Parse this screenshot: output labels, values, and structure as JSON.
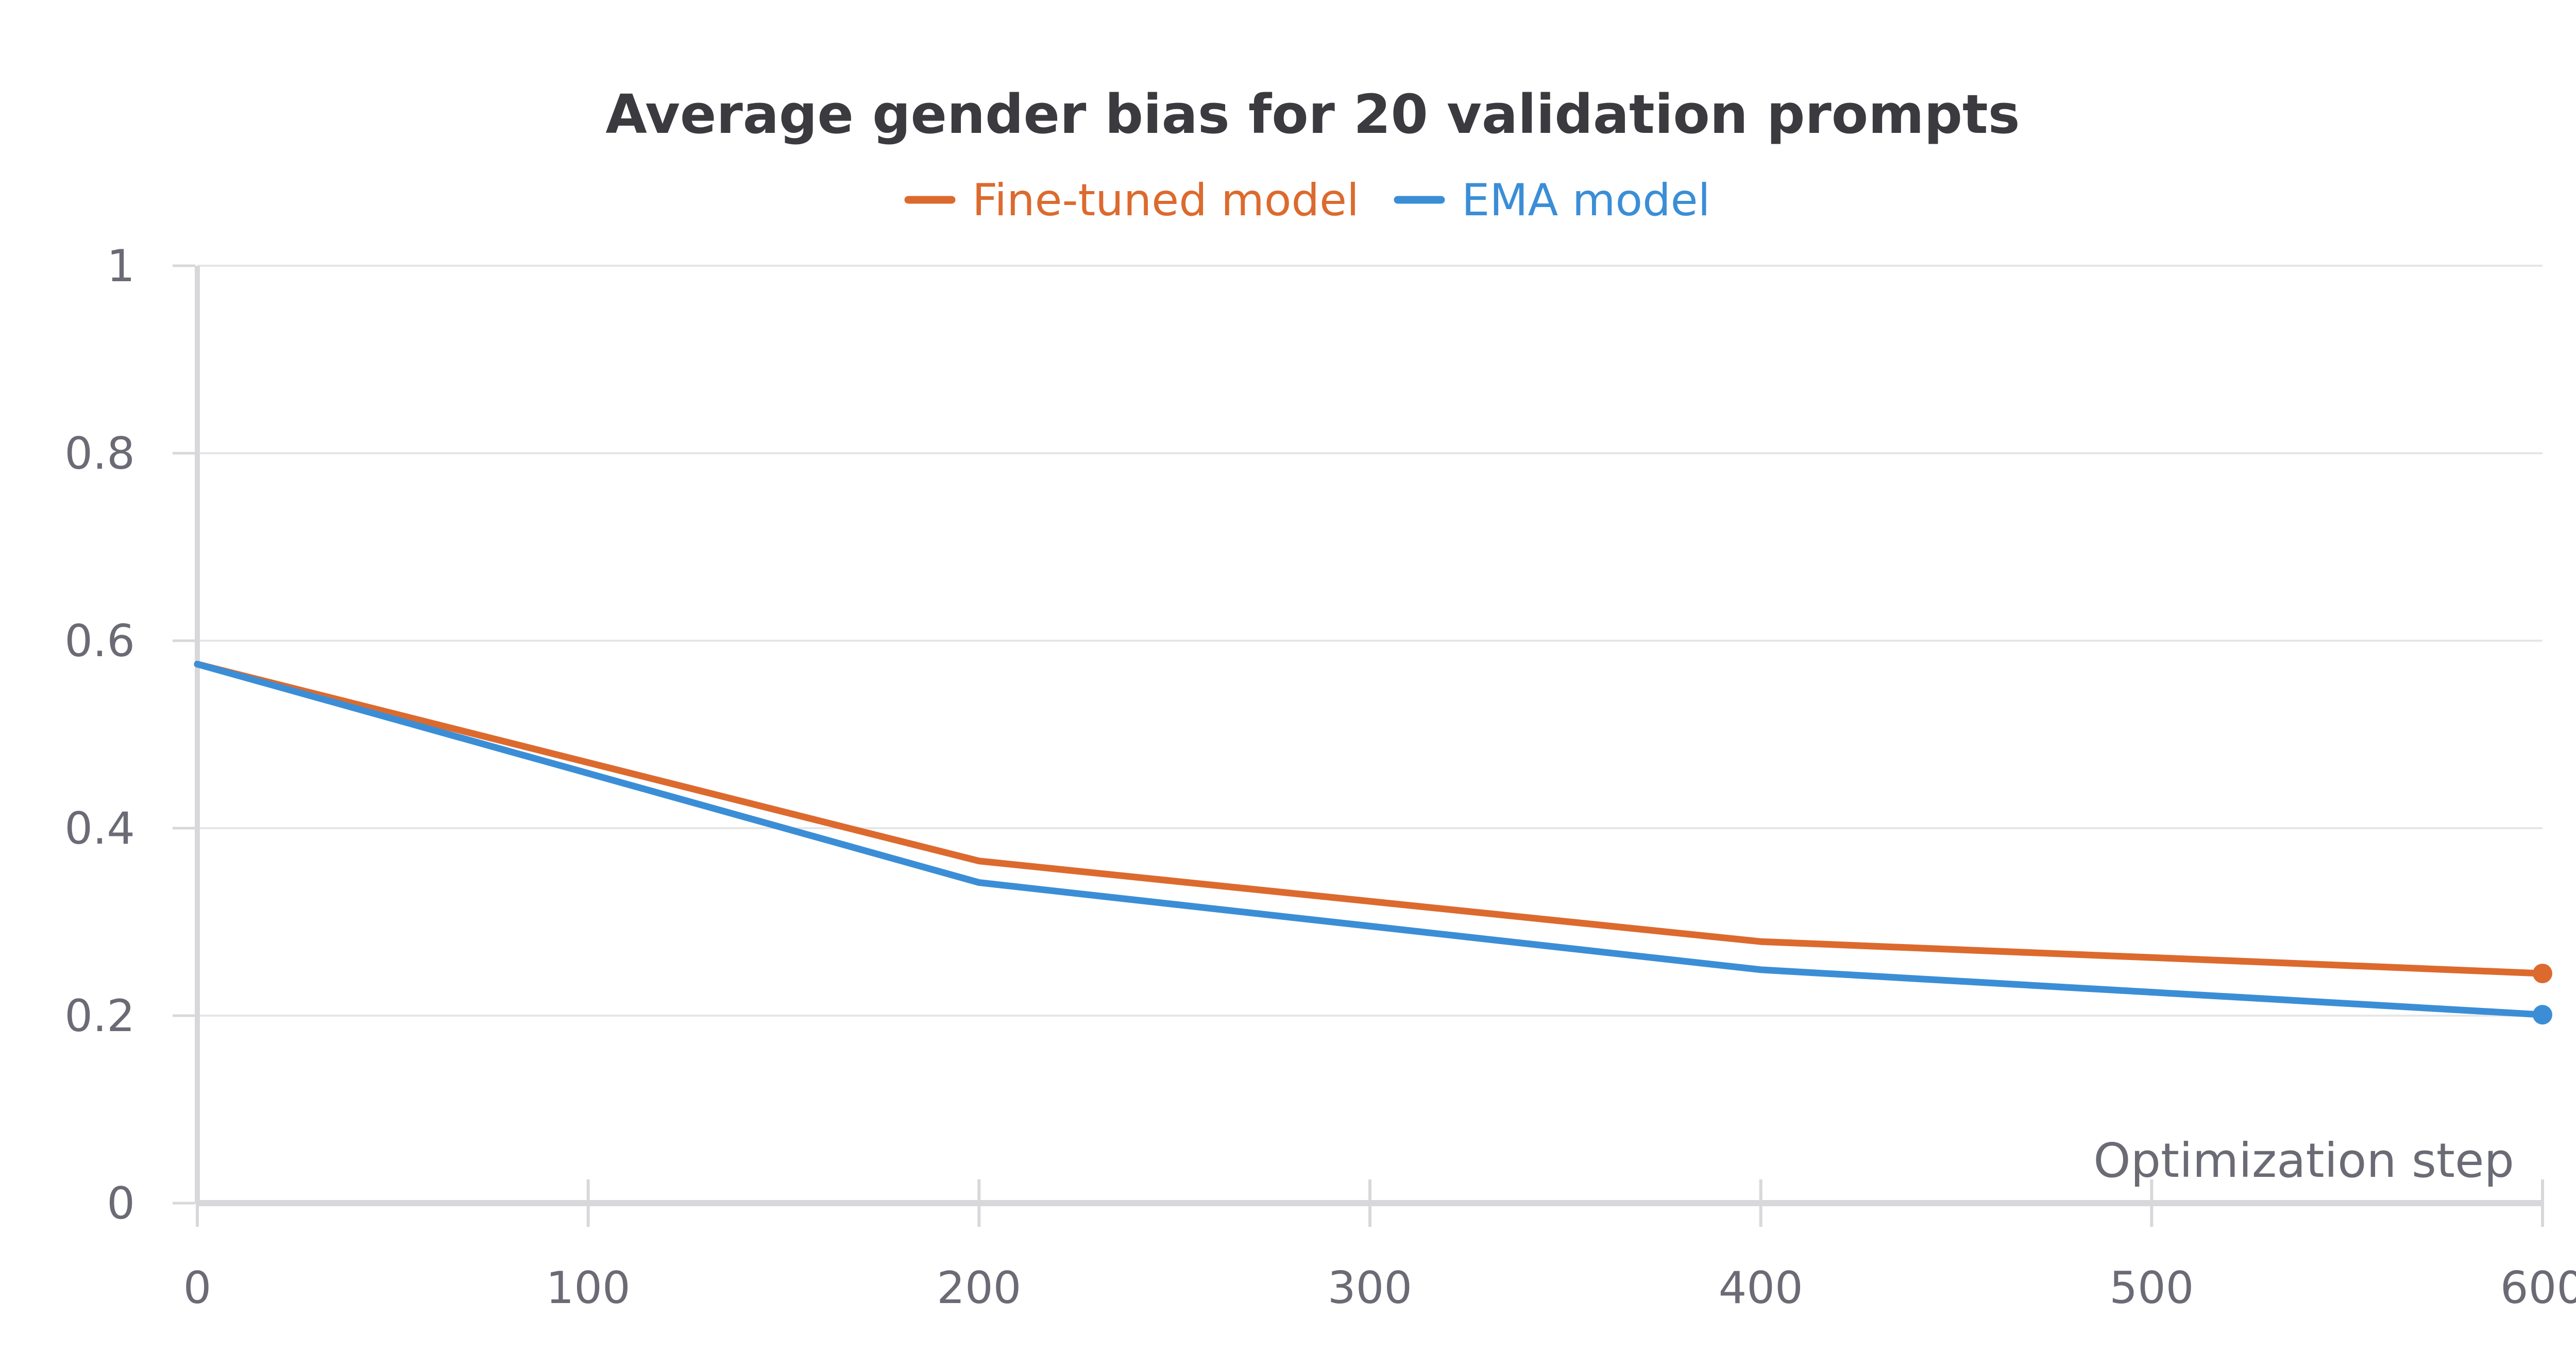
{
  "chart_data": {
    "type": "line",
    "title": "Average gender bias for 20 validation prompts",
    "xlabel": "Optimization step",
    "ylabel": "",
    "xlim": [
      0,
      600
    ],
    "ylim": [
      0,
      1
    ],
    "x_ticks": [
      "0",
      "100",
      "200",
      "300",
      "400",
      "500",
      "600"
    ],
    "y_ticks": [
      "0",
      "0.2",
      "0.4",
      "0.6",
      "0.8",
      "1"
    ],
    "x_tick_values": [
      0,
      100,
      200,
      300,
      400,
      500,
      600
    ],
    "y_tick_values": [
      0,
      0.2,
      0.4,
      0.6,
      0.8,
      1
    ],
    "grid": true,
    "legend_position": "top-center",
    "series": [
      {
        "name": "Fine-tuned model",
        "color": "#dc6a2e",
        "x": [
          0,
          200,
          400,
          600
        ],
        "values": [
          0.575,
          0.365,
          0.279,
          0.245
        ]
      },
      {
        "name": "EMA model",
        "color": "#3b8ed6",
        "x": [
          0,
          200,
          400,
          600
        ],
        "values": [
          0.575,
          0.342,
          0.249,
          0.201
        ]
      }
    ]
  }
}
